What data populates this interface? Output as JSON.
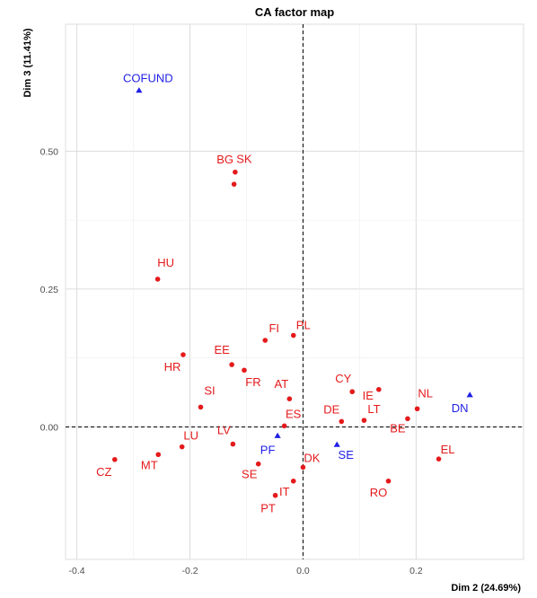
{
  "chart_data": {
    "type": "scatter",
    "title": "CA factor map",
    "xlabel": "Dim 2 (24.69%)",
    "ylabel": "Dim 3 (11.41%)",
    "xlim": [
      -0.42,
      0.39
    ],
    "ylim": [
      -0.24,
      0.73
    ],
    "x_ticks": [
      -0.4,
      -0.2,
      0.0,
      0.2
    ],
    "x_tick_labels": [
      "-0.4",
      "-0.2",
      "0.0",
      "0.2"
    ],
    "y_ticks": [
      0.0,
      0.25,
      0.5
    ],
    "y_tick_labels": [
      "0.00",
      "0.25",
      "0.50"
    ],
    "grid": true,
    "reference_lines": {
      "x": 0,
      "y": 0,
      "style": "dashed"
    },
    "colors": {
      "rows": "#e41a1c",
      "cols": "#1f1fe6",
      "grid": "#dcdcdc",
      "axis_text": "#4d4d4d"
    },
    "series": [
      {
        "group": "rows",
        "marker": "circle",
        "points": [
          {
            "label": "SK",
            "x": -0.12,
            "y": 0.462
          },
          {
            "label": "BG",
            "x": -0.122,
            "y": 0.44
          },
          {
            "label": "HU",
            "x": -0.257,
            "y": 0.268
          },
          {
            "label": "PL",
            "x": -0.017,
            "y": 0.166
          },
          {
            "label": "FI",
            "x": -0.067,
            "y": 0.157
          },
          {
            "label": "HR",
            "x": -0.212,
            "y": 0.131
          },
          {
            "label": "EE",
            "x": -0.126,
            "y": 0.113
          },
          {
            "label": "FR",
            "x": -0.104,
            "y": 0.103
          },
          {
            "label": "CY",
            "x": 0.087,
            "y": 0.064
          },
          {
            "label": "IE",
            "x": 0.134,
            "y": 0.068
          },
          {
            "label": "AT",
            "x": -0.024,
            "y": 0.051
          },
          {
            "label": "SI",
            "x": -0.181,
            "y": 0.036
          },
          {
            "label": "NL",
            "x": 0.202,
            "y": 0.033
          },
          {
            "label": "DE",
            "x": 0.068,
            "y": 0.01
          },
          {
            "label": "LT",
            "x": 0.108,
            "y": 0.012
          },
          {
            "label": "ES",
            "x": -0.033,
            "y": 0.002
          },
          {
            "label": "BE",
            "x": 0.185,
            "y": 0.015
          },
          {
            "label": "LU",
            "x": -0.214,
            "y": -0.036
          },
          {
            "label": "LV",
            "x": -0.124,
            "y": -0.031
          },
          {
            "label": "MT",
            "x": -0.256,
            "y": -0.05
          },
          {
            "label": "CZ",
            "x": -0.333,
            "y": -0.059
          },
          {
            "label": "EL",
            "x": 0.24,
            "y": -0.058
          },
          {
            "label": "SE",
            "x": -0.079,
            "y": -0.067
          },
          {
            "label": "DK",
            "x": 0.0,
            "y": -0.073
          },
          {
            "label": "IT",
            "x": -0.017,
            "y": -0.098
          },
          {
            "label": "RO",
            "x": 0.151,
            "y": -0.098
          },
          {
            "label": "PT",
            "x": -0.049,
            "y": -0.124
          }
        ]
      },
      {
        "group": "cols",
        "marker": "triangle",
        "points": [
          {
            "label": "COFUND",
            "x": -0.29,
            "y": 0.61
          },
          {
            "label": "DN",
            "x": 0.295,
            "y": 0.058
          },
          {
            "label": "PF",
            "x": -0.045,
            "y": -0.016
          },
          {
            "label": "SE",
            "x": 0.06,
            "y": -0.032
          }
        ]
      }
    ]
  }
}
